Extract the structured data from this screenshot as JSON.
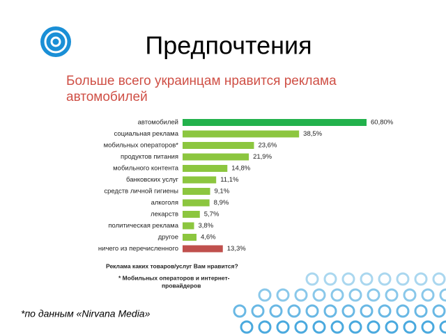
{
  "slide_title": "Предпочтения",
  "source": "*по данным «Nirvana Media»",
  "chart_data": {
    "type": "hbar",
    "title": [
      "Больше всего украинцам нравится реклама",
      "автомобилей"
    ],
    "categories": [
      "автомобилей",
      "социальная реклама",
      "мобильных операторов*",
      "продуктов питания",
      "мобильного контента",
      "банковских услуг",
      "средств личной гигиены",
      "алкоголя",
      "лекарств",
      "политическая реклама",
      "другое",
      "ничего из перечисленного"
    ],
    "values": [
      60.8,
      38.5,
      23.6,
      21.9,
      14.8,
      11.1,
      9.1,
      8.9,
      5.7,
      3.8,
      4.6,
      13.3
    ],
    "value_labels": [
      "60,80%",
      "38,5%",
      "23,6%",
      "21,9%",
      "14,8%",
      "11,1%",
      "9,1%",
      "8,9%",
      "5,7%",
      "3,8%",
      "4,6%",
      "13,3%"
    ],
    "colors": [
      "#22b14c",
      "#8cc63f",
      "#8cc63f",
      "#8cc63f",
      "#8cc63f",
      "#8cc63f",
      "#8cc63f",
      "#8cc63f",
      "#8cc63f",
      "#8cc63f",
      "#8cc63f",
      "#c0504d"
    ],
    "notes": [
      "Реклама каких товаров/услуг Вам нравится?",
      "* Мобильных операторов и интернет-",
      "провайдеров"
    ]
  }
}
